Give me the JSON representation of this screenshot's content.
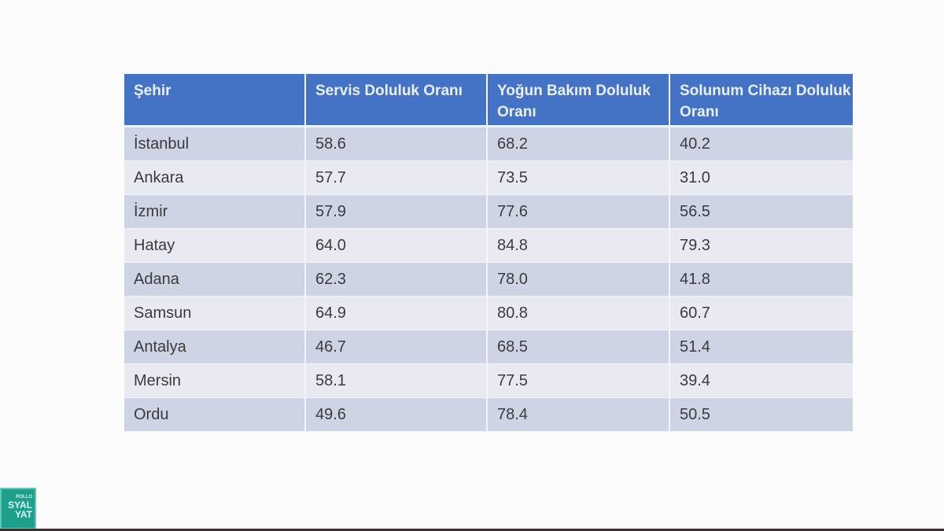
{
  "table": {
    "headers": [
      "Şehir",
      "Servis Doluluk Oranı",
      "Yoğun Bakım Doluluk Oranı",
      "Solunum Cihazı Doluluk Oranı"
    ],
    "rows": [
      {
        "city": "İstanbul",
        "servis": "58.6",
        "yogun_bakim": "68.2",
        "solunum": "40.2"
      },
      {
        "city": "Ankara",
        "servis": "57.7",
        "yogun_bakim": "73.5",
        "solunum": "31.0"
      },
      {
        "city": "İzmir",
        "servis": "57.9",
        "yogun_bakim": "77.6",
        "solunum": "56.5"
      },
      {
        "city": "Hatay",
        "servis": "64.0",
        "yogun_bakim": "84.8",
        "solunum": "79.3"
      },
      {
        "city": "Adana",
        "servis": "62.3",
        "yogun_bakim": "78.0",
        "solunum": "41.8"
      },
      {
        "city": "Samsun",
        "servis": "64.9",
        "yogun_bakim": "80.8",
        "solunum": "60.7"
      },
      {
        "city": "Antalya",
        "servis": "46.7",
        "yogun_bakim": "68.5",
        "solunum": "51.4"
      },
      {
        "city": "Mersin",
        "servis": "58.1",
        "yogun_bakim": "77.5",
        "solunum": "39.4"
      },
      {
        "city": "Ordu",
        "servis": "49.6",
        "yogun_bakim": "78.4",
        "solunum": "50.5"
      }
    ]
  },
  "logo": {
    "line1": "ROLLO",
    "line2": "SYAL",
    "line3": "YAT"
  },
  "colors": {
    "header_bg": "#4472c4",
    "row_odd": "#cfd4e4",
    "row_even": "#e8e9f1",
    "logo_bg": "#1e9f8c"
  }
}
